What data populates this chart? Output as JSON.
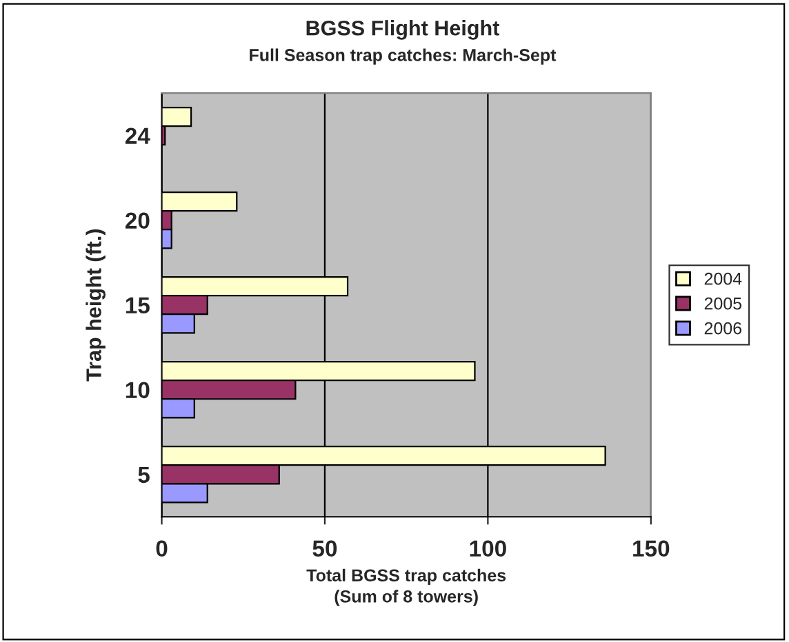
{
  "chart_data": {
    "type": "bar",
    "orientation": "horizontal",
    "title": "BGSS Flight Height",
    "subtitle": "Full Season trap catches: March-Sept",
    "xlabel": "Total BGSS trap catches\n(Sum of 8 towers)",
    "ylabel": "Trap height (ft.)",
    "categories": [
      "24",
      "20",
      "15",
      "10",
      "5"
    ],
    "series": [
      {
        "name": "2004",
        "color": "#ffffcc",
        "values": [
          9,
          23,
          57,
          96,
          136
        ]
      },
      {
        "name": "2005",
        "color": "#993366",
        "values": [
          1,
          3,
          14,
          41,
          36
        ]
      },
      {
        "name": "2006",
        "color": "#9999ff",
        "values": [
          null,
          3,
          10,
          10,
          14
        ]
      }
    ],
    "xlim": [
      0,
      150
    ],
    "xticks": [
      0,
      50,
      100,
      150
    ],
    "grid": "x",
    "legend": "right"
  }
}
